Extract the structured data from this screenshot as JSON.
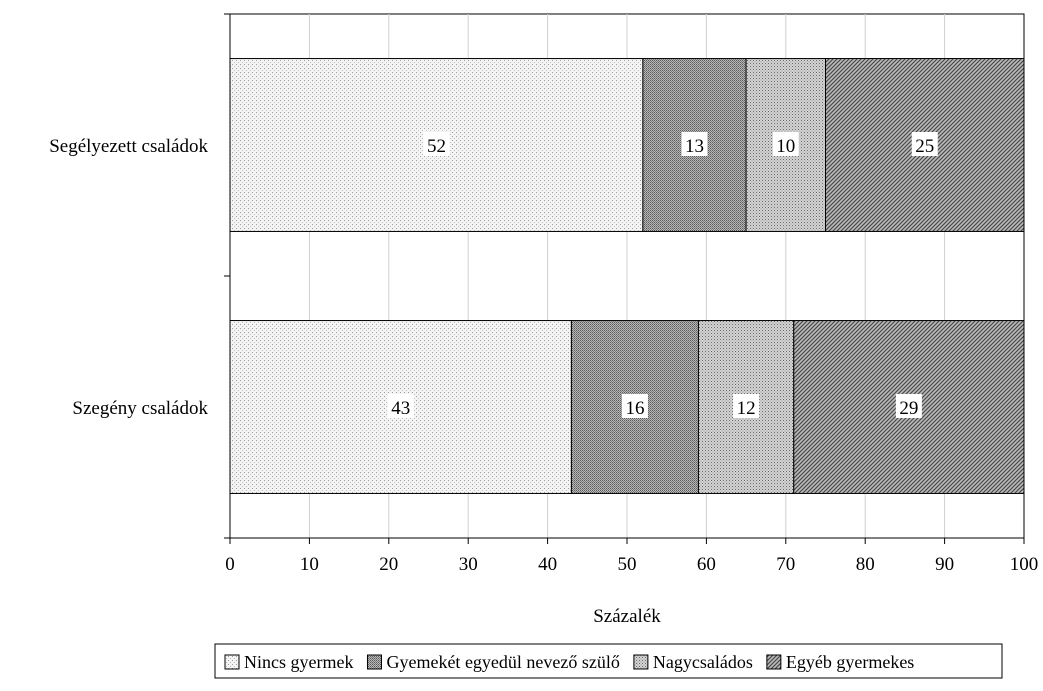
{
  "chart_data": {
    "type": "bar",
    "orientation": "horizontal",
    "stacked": true,
    "categories": [
      "Segélyezett családok",
      "Szegény családok"
    ],
    "series": [
      {
        "name": "Nincs gyermek",
        "values": [
          52,
          43
        ],
        "color": "#f0f0f0",
        "pattern": "fine-dots"
      },
      {
        "name": "Gyemekét egyedül nevező szülő",
        "values": [
          13,
          16
        ],
        "color": "#a9a9a9",
        "pattern": "dense-dots"
      },
      {
        "name": "Nagycsaládos",
        "values": [
          10,
          12
        ],
        "color": "#cfcfcf",
        "pattern": "medium-dots"
      },
      {
        "name": "Egyéb gyermekes",
        "values": [
          25,
          29
        ],
        "color": "#9a9a9a",
        "pattern": "diagonal-hatch"
      }
    ],
    "xlabel": "Százalék",
    "ylabel": "",
    "xlim": [
      0,
      100
    ],
    "xticks": [
      0,
      10,
      20,
      30,
      40,
      50,
      60,
      70,
      80,
      90,
      100
    ],
    "grid": "vertical",
    "legend": "bottom"
  }
}
